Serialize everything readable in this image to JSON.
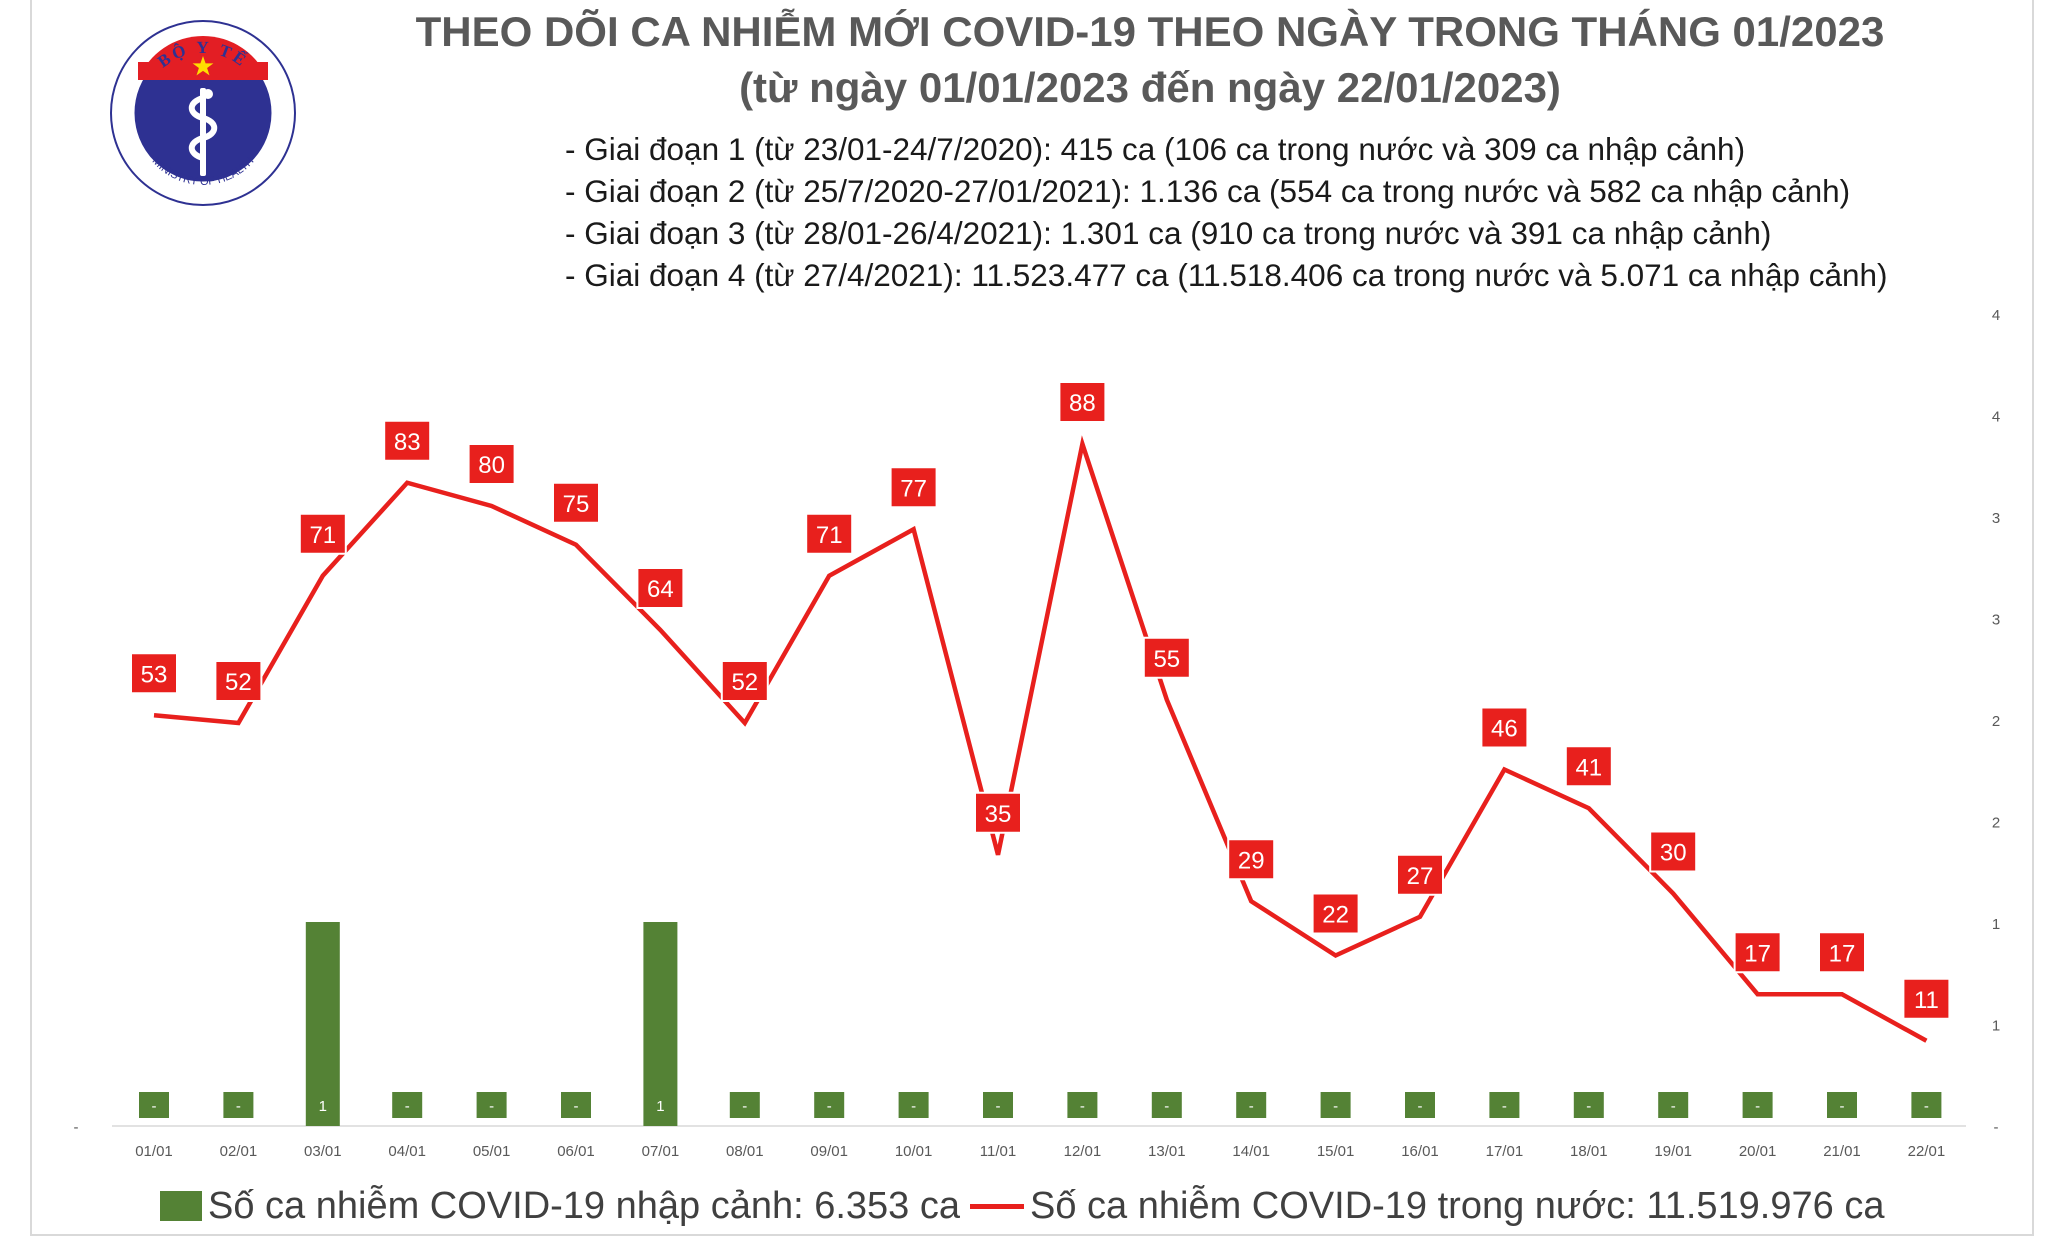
{
  "title": "THEO DÕI CA NHIỄM MỚI COVID-19 THEO NGÀY TRONG THÁNG 01/2023",
  "subtitle": "(từ ngày 01/01/2023 đến ngày 22/01/2023)",
  "logo": {
    "top_text": "BỘ Y TẾ",
    "bottom_text": "MINISTRY OF HEALTH",
    "colors": {
      "ring": "#2e3192",
      "red": "#e31e24",
      "star": "#ffde00"
    }
  },
  "notes": [
    "- Giai đoạn 1 (từ 23/01-24/7/2020): 415 ca (106 ca trong nước và 309 ca nhập cảnh)",
    "- Giai đoạn 2 (từ 25/7/2020-27/01/2021): 1.136 ca (554 ca trong nước và 582 ca nhập cảnh)",
    "- Giai đoạn 3 (từ 28/01-26/4/2021): 1.301 ca (910 ca trong nước và 391 ca nhập cảnh)",
    "- Giai đoạn 4 (từ 27/4/2021): 11.523.477 ca (11.518.406 ca trong nước và 5.071 ca nhập cảnh)"
  ],
  "legend": {
    "bar_label": "Số ca nhiễm COVID-19 nhập cảnh: 6.353 ca",
    "line_label": "Số ca nhiễm COVID-19 trong nước: 11.519.976 ca"
  },
  "chart_data": {
    "type": "bar",
    "categories": [
      "01/01",
      "02/01",
      "03/01",
      "04/01",
      "05/01",
      "06/01",
      "07/01",
      "08/01",
      "09/01",
      "10/01",
      "11/01",
      "12/01",
      "13/01",
      "14/01",
      "15/01",
      "16/01",
      "17/01",
      "18/01",
      "19/01",
      "20/01",
      "21/01",
      "22/01"
    ],
    "series": [
      {
        "name": "Số ca nhiễm COVID-19 nhập cảnh",
        "type": "bar",
        "color": "#548235",
        "axis": "right",
        "values": [
          0,
          0,
          1,
          0,
          0,
          0,
          1,
          0,
          0,
          0,
          0,
          0,
          0,
          0,
          0,
          0,
          0,
          0,
          0,
          0,
          0,
          0
        ],
        "labels": [
          "-",
          "-",
          "1",
          "-",
          "-",
          "-",
          "1",
          "-",
          "-",
          "-",
          "-",
          "-",
          "-",
          "-",
          "-",
          "-",
          "-",
          "-",
          "-",
          "-",
          "-",
          "-"
        ]
      },
      {
        "name": "Số ca nhiễm COVID-19 trong nước",
        "type": "line",
        "color": "#e8201d",
        "axis": "left",
        "values": [
          53,
          52,
          71,
          83,
          80,
          75,
          64,
          52,
          71,
          77,
          35,
          88,
          55,
          29,
          22,
          27,
          46,
          41,
          30,
          17,
          17,
          11
        ]
      }
    ],
    "right_axis_ticks": [
      "-",
      "1",
      "1",
      "2",
      "2",
      "3",
      "3",
      "4",
      "4"
    ],
    "left_axis_ticks": [
      "-"
    ],
    "ylim_left": [
      0,
      100
    ],
    "ylim_right": [
      0,
      4
    ],
    "grid": false,
    "legend_position": "bottom"
  }
}
